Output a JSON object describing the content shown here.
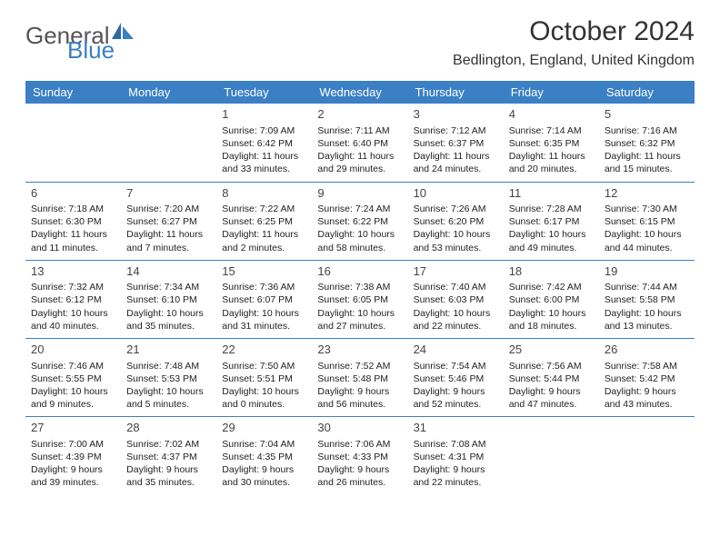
{
  "brand": {
    "text1": "General",
    "text2": "Blue",
    "text_color": "#555555",
    "accent_color": "#3b7fc4"
  },
  "title": "October 2024",
  "location": "Bedlington, England, United Kingdom",
  "colors": {
    "header_bg": "#3b7fc4",
    "header_text": "#ffffff",
    "cell_border": "#3b7fc4",
    "body_text": "#222222",
    "background": "#ffffff"
  },
  "day_headers": [
    "Sunday",
    "Monday",
    "Tuesday",
    "Wednesday",
    "Thursday",
    "Friday",
    "Saturday"
  ],
  "weeks": [
    [
      {
        "n": "",
        "sr": "",
        "ss": "",
        "d1": "",
        "d2": ""
      },
      {
        "n": "",
        "sr": "",
        "ss": "",
        "d1": "",
        "d2": ""
      },
      {
        "n": "1",
        "sr": "Sunrise: 7:09 AM",
        "ss": "Sunset: 6:42 PM",
        "d1": "Daylight: 11 hours",
        "d2": "and 33 minutes."
      },
      {
        "n": "2",
        "sr": "Sunrise: 7:11 AM",
        "ss": "Sunset: 6:40 PM",
        "d1": "Daylight: 11 hours",
        "d2": "and 29 minutes."
      },
      {
        "n": "3",
        "sr": "Sunrise: 7:12 AM",
        "ss": "Sunset: 6:37 PM",
        "d1": "Daylight: 11 hours",
        "d2": "and 24 minutes."
      },
      {
        "n": "4",
        "sr": "Sunrise: 7:14 AM",
        "ss": "Sunset: 6:35 PM",
        "d1": "Daylight: 11 hours",
        "d2": "and 20 minutes."
      },
      {
        "n": "5",
        "sr": "Sunrise: 7:16 AM",
        "ss": "Sunset: 6:32 PM",
        "d1": "Daylight: 11 hours",
        "d2": "and 15 minutes."
      }
    ],
    [
      {
        "n": "6",
        "sr": "Sunrise: 7:18 AM",
        "ss": "Sunset: 6:30 PM",
        "d1": "Daylight: 11 hours",
        "d2": "and 11 minutes."
      },
      {
        "n": "7",
        "sr": "Sunrise: 7:20 AM",
        "ss": "Sunset: 6:27 PM",
        "d1": "Daylight: 11 hours",
        "d2": "and 7 minutes."
      },
      {
        "n": "8",
        "sr": "Sunrise: 7:22 AM",
        "ss": "Sunset: 6:25 PM",
        "d1": "Daylight: 11 hours",
        "d2": "and 2 minutes."
      },
      {
        "n": "9",
        "sr": "Sunrise: 7:24 AM",
        "ss": "Sunset: 6:22 PM",
        "d1": "Daylight: 10 hours",
        "d2": "and 58 minutes."
      },
      {
        "n": "10",
        "sr": "Sunrise: 7:26 AM",
        "ss": "Sunset: 6:20 PM",
        "d1": "Daylight: 10 hours",
        "d2": "and 53 minutes."
      },
      {
        "n": "11",
        "sr": "Sunrise: 7:28 AM",
        "ss": "Sunset: 6:17 PM",
        "d1": "Daylight: 10 hours",
        "d2": "and 49 minutes."
      },
      {
        "n": "12",
        "sr": "Sunrise: 7:30 AM",
        "ss": "Sunset: 6:15 PM",
        "d1": "Daylight: 10 hours",
        "d2": "and 44 minutes."
      }
    ],
    [
      {
        "n": "13",
        "sr": "Sunrise: 7:32 AM",
        "ss": "Sunset: 6:12 PM",
        "d1": "Daylight: 10 hours",
        "d2": "and 40 minutes."
      },
      {
        "n": "14",
        "sr": "Sunrise: 7:34 AM",
        "ss": "Sunset: 6:10 PM",
        "d1": "Daylight: 10 hours",
        "d2": "and 35 minutes."
      },
      {
        "n": "15",
        "sr": "Sunrise: 7:36 AM",
        "ss": "Sunset: 6:07 PM",
        "d1": "Daylight: 10 hours",
        "d2": "and 31 minutes."
      },
      {
        "n": "16",
        "sr": "Sunrise: 7:38 AM",
        "ss": "Sunset: 6:05 PM",
        "d1": "Daylight: 10 hours",
        "d2": "and 27 minutes."
      },
      {
        "n": "17",
        "sr": "Sunrise: 7:40 AM",
        "ss": "Sunset: 6:03 PM",
        "d1": "Daylight: 10 hours",
        "d2": "and 22 minutes."
      },
      {
        "n": "18",
        "sr": "Sunrise: 7:42 AM",
        "ss": "Sunset: 6:00 PM",
        "d1": "Daylight: 10 hours",
        "d2": "and 18 minutes."
      },
      {
        "n": "19",
        "sr": "Sunrise: 7:44 AM",
        "ss": "Sunset: 5:58 PM",
        "d1": "Daylight: 10 hours",
        "d2": "and 13 minutes."
      }
    ],
    [
      {
        "n": "20",
        "sr": "Sunrise: 7:46 AM",
        "ss": "Sunset: 5:55 PM",
        "d1": "Daylight: 10 hours",
        "d2": "and 9 minutes."
      },
      {
        "n": "21",
        "sr": "Sunrise: 7:48 AM",
        "ss": "Sunset: 5:53 PM",
        "d1": "Daylight: 10 hours",
        "d2": "and 5 minutes."
      },
      {
        "n": "22",
        "sr": "Sunrise: 7:50 AM",
        "ss": "Sunset: 5:51 PM",
        "d1": "Daylight: 10 hours",
        "d2": "and 0 minutes."
      },
      {
        "n": "23",
        "sr": "Sunrise: 7:52 AM",
        "ss": "Sunset: 5:48 PM",
        "d1": "Daylight: 9 hours",
        "d2": "and 56 minutes."
      },
      {
        "n": "24",
        "sr": "Sunrise: 7:54 AM",
        "ss": "Sunset: 5:46 PM",
        "d1": "Daylight: 9 hours",
        "d2": "and 52 minutes."
      },
      {
        "n": "25",
        "sr": "Sunrise: 7:56 AM",
        "ss": "Sunset: 5:44 PM",
        "d1": "Daylight: 9 hours",
        "d2": "and 47 minutes."
      },
      {
        "n": "26",
        "sr": "Sunrise: 7:58 AM",
        "ss": "Sunset: 5:42 PM",
        "d1": "Daylight: 9 hours",
        "d2": "and 43 minutes."
      }
    ],
    [
      {
        "n": "27",
        "sr": "Sunrise: 7:00 AM",
        "ss": "Sunset: 4:39 PM",
        "d1": "Daylight: 9 hours",
        "d2": "and 39 minutes."
      },
      {
        "n": "28",
        "sr": "Sunrise: 7:02 AM",
        "ss": "Sunset: 4:37 PM",
        "d1": "Daylight: 9 hours",
        "d2": "and 35 minutes."
      },
      {
        "n": "29",
        "sr": "Sunrise: 7:04 AM",
        "ss": "Sunset: 4:35 PM",
        "d1": "Daylight: 9 hours",
        "d2": "and 30 minutes."
      },
      {
        "n": "30",
        "sr": "Sunrise: 7:06 AM",
        "ss": "Sunset: 4:33 PM",
        "d1": "Daylight: 9 hours",
        "d2": "and 26 minutes."
      },
      {
        "n": "31",
        "sr": "Sunrise: 7:08 AM",
        "ss": "Sunset: 4:31 PM",
        "d1": "Daylight: 9 hours",
        "d2": "and 22 minutes."
      },
      {
        "n": "",
        "sr": "",
        "ss": "",
        "d1": "",
        "d2": ""
      },
      {
        "n": "",
        "sr": "",
        "ss": "",
        "d1": "",
        "d2": ""
      }
    ]
  ]
}
